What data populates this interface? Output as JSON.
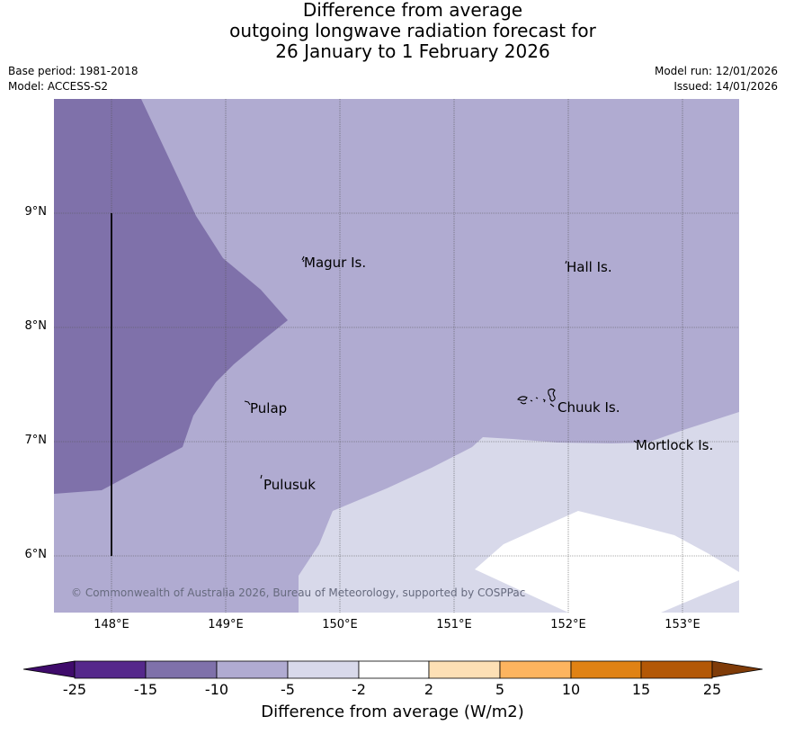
{
  "header": {
    "title_line1": "Difference from average",
    "title_line2": "outgoing longwave radiation forecast for",
    "title_line3": "26 January to 1 February 2026",
    "base_period": "Base period: 1981-2018",
    "model": "Model: ACCESS-S2",
    "model_run": "Model run: 12/01/2026",
    "issued": "Issued: 14/01/2026"
  },
  "map": {
    "latitude_labels": [
      "9°N",
      "8°N",
      "7°N",
      "6°N"
    ],
    "longitude_labels": [
      "148°E",
      "149°E",
      "150°E",
      "151°E",
      "152°E",
      "153°E"
    ],
    "places": [
      "Magur Is.",
      "Hall Is.",
      "Pulap",
      "Chuuk Is.",
      "Mortlock Is.",
      "Pulusuk"
    ],
    "copyright": "© Commonwealth of Australia 2026, Bureau of Meteorology, supported by COSPPac",
    "colors": {
      "band_minus15_minus10": "#7f71aa",
      "band_minus10_minus5": "#b0abd1",
      "band_minus5_minus2": "#d8d9ea",
      "band_minus2_2": "#ffffff"
    }
  },
  "colorbar": {
    "ticks": [
      "-25",
      "-15",
      "-10",
      "-5",
      "-2",
      "2",
      "5",
      "10",
      "15",
      "25"
    ],
    "colors": [
      "#3f0b6b",
      "#55288b",
      "#7f71aa",
      "#b0abd1",
      "#d8d9ea",
      "#ffffff",
      "#fde0b5",
      "#fdb45f",
      "#e08214",
      "#b35806",
      "#7f3b08"
    ],
    "label": "Difference from average (W/m2)"
  }
}
